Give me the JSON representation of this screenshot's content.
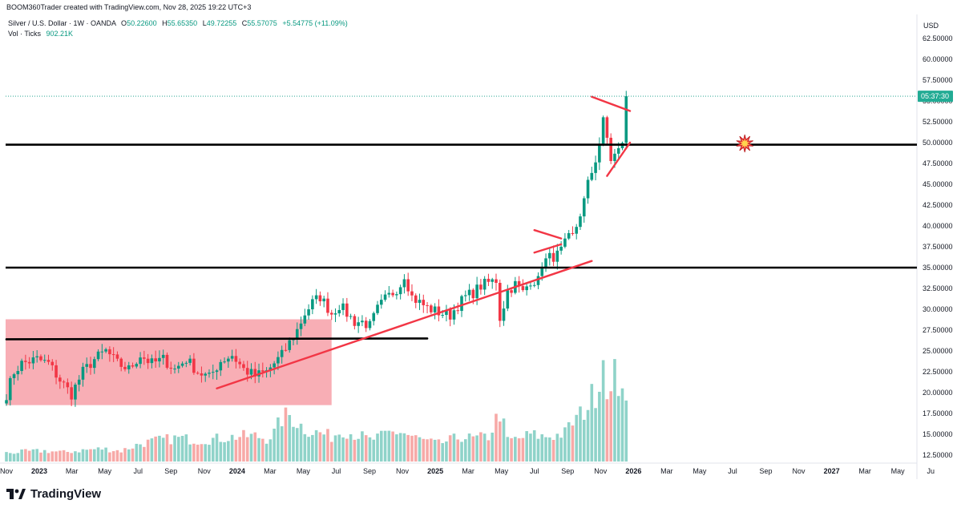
{
  "header": {
    "credit": "BOOM360Trader created with TradingView.com, Nov 28, 2025 19:22 UTC+3",
    "symbol": "Silver / U.S. Dollar · 1W · OANDA",
    "o_label": "O",
    "o": "50.22600",
    "h_label": "H",
    "h": "55.65350",
    "l_label": "L",
    "l": "49.72255",
    "c_label": "C",
    "c": "55.57075",
    "change": "+5.54775 (+11.09%)",
    "vol_label": "Vol · Ticks",
    "vol": "902.21K"
  },
  "branding": {
    "name": "TradingView"
  },
  "colors": {
    "up": "#089981",
    "down": "#f23645",
    "vol_up": "#8fd3c9",
    "vol_down": "#f7a9a7",
    "line": "#000000",
    "trend": "#f23645",
    "box": "#f7a0a8",
    "label_bg": "#22ab94"
  },
  "chart_data": {
    "type": "candlestick",
    "title": "Silver / U.S. Dollar · 1W · OANDA",
    "ylabel": "USD",
    "currency": "USD",
    "ylim": [
      11.5,
      65
    ],
    "y_ticks": [
      "62.50000",
      "60.00000",
      "57.50000",
      "55.00000",
      "52.50000",
      "50.00000",
      "47.50000",
      "45.00000",
      "42.50000",
      "40.00000",
      "37.50000",
      "35.00000",
      "32.50000",
      "30.00000",
      "27.50000",
      "25.00000",
      "22.50000",
      "20.00000",
      "17.50000",
      "15.00000",
      "12.50000"
    ],
    "x_ticks": [
      {
        "label": "Nov",
        "t": 0
      },
      {
        "label": "2023",
        "t": 8.6,
        "bold": true
      },
      {
        "label": "Mar",
        "t": 17.1
      },
      {
        "label": "May",
        "t": 25.7
      },
      {
        "label": "Jul",
        "t": 34.4
      },
      {
        "label": "Sep",
        "t": 43.0
      },
      {
        "label": "Nov",
        "t": 51.7
      },
      {
        "label": "2024",
        "t": 60.3,
        "bold": true
      },
      {
        "label": "Mar",
        "t": 68.9
      },
      {
        "label": "May",
        "t": 77.6
      },
      {
        "label": "Jul",
        "t": 86.2
      },
      {
        "label": "Sep",
        "t": 94.9
      },
      {
        "label": "Nov",
        "t": 103.5
      },
      {
        "label": "2025",
        "t": 112.1,
        "bold": true
      },
      {
        "label": "Mar",
        "t": 120.7
      },
      {
        "label": "May",
        "t": 129.4
      },
      {
        "label": "Jul",
        "t": 138.0
      },
      {
        "label": "Sep",
        "t": 146.7
      },
      {
        "label": "Nov",
        "t": 155.3
      },
      {
        "label": "2026",
        "t": 163.9,
        "bold": true
      },
      {
        "label": "Mar",
        "t": 172.6
      },
      {
        "label": "May",
        "t": 181.2
      },
      {
        "label": "Jul",
        "t": 189.8
      },
      {
        "label": "Sep",
        "t": 198.5
      },
      {
        "label": "Nov",
        "t": 207.1
      },
      {
        "label": "2027",
        "t": 215.7,
        "bold": true
      },
      {
        "label": "Mar",
        "t": 224.4
      },
      {
        "label": "May",
        "t": 233.0
      },
      {
        "label": "Ju",
        "t": 241.6
      }
    ],
    "price_path": [
      [
        0,
        19.8
      ],
      [
        2,
        22.5
      ],
      [
        4,
        23.5
      ],
      [
        8,
        24.0
      ],
      [
        11,
        23.5
      ],
      [
        14,
        21.5
      ],
      [
        17,
        19.8
      ],
      [
        20,
        22.5
      ],
      [
        23,
        24.0
      ],
      [
        26,
        25.0
      ],
      [
        29,
        23.5
      ],
      [
        32,
        22.8
      ],
      [
        35,
        24.5
      ],
      [
        38,
        23.5
      ],
      [
        41,
        24.0
      ],
      [
        44,
        22.8
      ],
      [
        47,
        24.0
      ],
      [
        50,
        22.5
      ],
      [
        53,
        21.8
      ],
      [
        56,
        23.8
      ],
      [
        59,
        24.5
      ],
      [
        62,
        22.8
      ],
      [
        65,
        22.0
      ],
      [
        68,
        22.5
      ],
      [
        70,
        23.5
      ],
      [
        72,
        24.5
      ],
      [
        74,
        26.0
      ],
      [
        76,
        27.5
      ],
      [
        78,
        29.5
      ],
      [
        80,
        30.8
      ],
      [
        82,
        31.5
      ],
      [
        85,
        29.5
      ],
      [
        87,
        30.5
      ],
      [
        89,
        29.5
      ],
      [
        91,
        28.5
      ],
      [
        93,
        28.5
      ],
      [
        95,
        28.0
      ],
      [
        97,
        30.0
      ],
      [
        99,
        31.2
      ],
      [
        101,
        32.0
      ],
      [
        103,
        33.0
      ],
      [
        104,
        34.2
      ],
      [
        106,
        31.5
      ],
      [
        108,
        30.8
      ],
      [
        110,
        30.2
      ],
      [
        112,
        29.8
      ],
      [
        114,
        29.5
      ],
      [
        116,
        29.3
      ],
      [
        118,
        30.5
      ],
      [
        120,
        31.5
      ],
      [
        122,
        32.0
      ],
      [
        124,
        32.8
      ],
      [
        126,
        33.2
      ],
      [
        128,
        33.5
      ],
      [
        129,
        29.0
      ],
      [
        130,
        30.5
      ],
      [
        131,
        32.2
      ],
      [
        133,
        33.0
      ],
      [
        135,
        32.0
      ],
      [
        137,
        33.5
      ],
      [
        139,
        33.4
      ],
      [
        140,
        35.5
      ],
      [
        142,
        36.2
      ],
      [
        144,
        36.5
      ],
      [
        145,
        37.0
      ],
      [
        146,
        37.8
      ],
      [
        147,
        38.5
      ],
      [
        148,
        38.7
      ],
      [
        149,
        40.0
      ],
      [
        150,
        41.5
      ],
      [
        151,
        43.0
      ],
      [
        152,
        45.0
      ],
      [
        153,
        46.5
      ],
      [
        154,
        48.0
      ],
      [
        155,
        50.0
      ],
      [
        156,
        52.5
      ],
      [
        157,
        50.5
      ],
      [
        158,
        48.0
      ],
      [
        159,
        48.5
      ],
      [
        160,
        49.0
      ],
      [
        161,
        50.2
      ],
      [
        162,
        55.57
      ]
    ],
    "volume_ylim": [
      0,
      18
    ],
    "volume_path": [
      [
        0,
        1.2
      ],
      [
        5,
        1.4
      ],
      [
        10,
        1.5
      ],
      [
        15,
        1.3
      ],
      [
        20,
        1.6
      ],
      [
        25,
        1.8
      ],
      [
        30,
        1.5
      ],
      [
        35,
        2.5
      ],
      [
        40,
        3.0
      ],
      [
        45,
        3.3
      ],
      [
        50,
        3.0
      ],
      [
        55,
        3.2
      ],
      [
        60,
        3.5
      ],
      [
        65,
        3.6
      ],
      [
        68,
        3.2
      ],
      [
        70,
        4.0
      ],
      [
        72,
        6.0
      ],
      [
        74,
        6.5
      ],
      [
        76,
        5.5
      ],
      [
        78,
        4.6
      ],
      [
        80,
        4.2
      ],
      [
        82,
        4.0
      ],
      [
        85,
        3.5
      ],
      [
        88,
        4.5
      ],
      [
        90,
        4.0
      ],
      [
        93,
        3.5
      ],
      [
        95,
        3.0
      ],
      [
        98,
        3.5
      ],
      [
        100,
        4.0
      ],
      [
        103,
        4.2
      ],
      [
        106,
        3.5
      ],
      [
        110,
        2.8
      ],
      [
        113,
        2.5
      ],
      [
        116,
        3.0
      ],
      [
        119,
        3.5
      ],
      [
        122,
        3.2
      ],
      [
        126,
        3.5
      ],
      [
        129,
        7.0
      ],
      [
        131,
        3.0
      ],
      [
        134,
        3.2
      ],
      [
        137,
        3.8
      ],
      [
        140,
        3.5
      ],
      [
        143,
        3.6
      ],
      [
        146,
        4.0
      ],
      [
        148,
        5.5
      ],
      [
        150,
        6.5
      ],
      [
        152,
        8.0
      ],
      [
        154,
        10.0
      ],
      [
        155,
        12.0
      ],
      [
        156,
        15.0
      ],
      [
        157,
        11.5
      ],
      [
        158,
        9.0
      ],
      [
        159,
        12.0
      ],
      [
        160,
        11.0
      ],
      [
        161,
        12.0
      ],
      [
        162,
        7.0
      ]
    ],
    "horizontal_lines": [
      {
        "price": 49.75
      },
      {
        "price": 35.0
      }
    ],
    "segments": [
      {
        "t1": 0,
        "p1": 26.4,
        "t2": 110,
        "p2": 26.5,
        "color": "black"
      },
      {
        "t1": 55,
        "p1": 20.5,
        "t2": 153,
        "p2": 35.8,
        "color": "red"
      },
      {
        "t1": 153,
        "p1": 55.5,
        "t2": 163,
        "p2": 53.8,
        "color": "red"
      },
      {
        "t1": 157,
        "p1": 46.0,
        "t2": 163,
        "p2": 50.0,
        "color": "red"
      },
      {
        "t1": 138,
        "p1": 39.5,
        "t2": 145,
        "p2": 38.5,
        "color": "red"
      },
      {
        "t1": 138,
        "p1": 36.8,
        "t2": 145,
        "p2": 37.8,
        "color": "red"
      }
    ],
    "zone": {
      "t1": 0,
      "t2": 85,
      "p_top": 28.8,
      "p_bottom": 18.5
    },
    "marker": {
      "t": 193,
      "price": 49.9,
      "icon": "explosion"
    },
    "last_price": 55.57075,
    "countdown_label": "05:37:30",
    "n_bars": 163
  }
}
